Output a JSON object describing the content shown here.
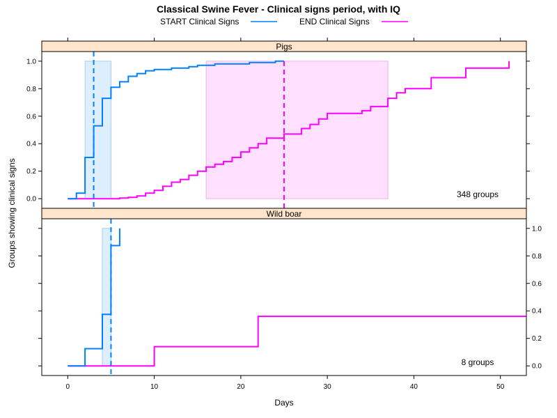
{
  "chart_data": {
    "type": "line",
    "title": "Classical Swine Fever - Clinical signs period, with IQ",
    "xlabel": "Days",
    "ylabel": "Groups showing clinical signs",
    "xlim": [
      -3,
      53
    ],
    "ylim": [
      -0.07,
      1.07
    ],
    "x_ticks": [
      0,
      10,
      20,
      30,
      40,
      50
    ],
    "y_ticks": [
      0.0,
      0.2,
      0.4,
      0.6,
      0.8,
      1.0
    ],
    "x_tick_labels": [
      "0",
      "10",
      "20",
      "30",
      "40",
      "50"
    ],
    "y_tick_labels": [
      "0.0",
      "0.2",
      "0.4",
      "0.6",
      "0.8",
      "1.0"
    ],
    "legend": {
      "placement": "top",
      "entries": [
        {
          "label": "START Clinical Signs",
          "color": "#0080ff"
        },
        {
          "label": "END Clinical Signs",
          "color": "#ff00ff"
        }
      ]
    },
    "panels": [
      {
        "strip": "Pigs",
        "count_label": "348 groups",
        "start_series": {
          "name": "START Clinical Signs",
          "color": "#0080ff",
          "median": 3,
          "iq": [
            2,
            5
          ],
          "steps": [
            [
              0,
              0
            ],
            [
              1,
              0.04
            ],
            [
              2,
              0.3
            ],
            [
              3,
              0.53
            ],
            [
              4,
              0.73
            ],
            [
              5,
              0.81
            ],
            [
              6,
              0.85
            ],
            [
              7,
              0.89
            ],
            [
              8,
              0.91
            ],
            [
              9,
              0.93
            ],
            [
              10,
              0.94
            ],
            [
              12,
              0.95
            ],
            [
              14,
              0.96
            ],
            [
              15,
              0.97
            ],
            [
              17,
              0.98
            ],
            [
              21,
              0.99
            ],
            [
              24,
              1.0
            ],
            [
              25,
              1.0
            ]
          ]
        },
        "end_series": {
          "name": "END Clinical Signs",
          "color": "#ff00ff",
          "median": 25,
          "iq": [
            16,
            37
          ],
          "steps": [
            [
              0,
              0
            ],
            [
              6,
              0.005
            ],
            [
              7,
              0.01
            ],
            [
              8,
              0.02
            ],
            [
              9,
              0.04
            ],
            [
              10,
              0.06
            ],
            [
              11,
              0.09
            ],
            [
              12,
              0.12
            ],
            [
              13,
              0.14
            ],
            [
              14,
              0.17
            ],
            [
              15,
              0.2
            ],
            [
              16,
              0.23
            ],
            [
              17,
              0.25
            ],
            [
              18,
              0.27
            ],
            [
              19,
              0.3
            ],
            [
              20,
              0.34
            ],
            [
              21,
              0.37
            ],
            [
              22,
              0.4
            ],
            [
              23,
              0.44
            ],
            [
              25,
              0.47
            ],
            [
              27,
              0.51
            ],
            [
              28,
              0.54
            ],
            [
              29,
              0.58
            ],
            [
              30,
              0.62
            ],
            [
              34,
              0.64
            ],
            [
              35,
              0.67
            ],
            [
              37,
              0.73
            ],
            [
              38,
              0.77
            ],
            [
              39,
              0.8
            ],
            [
              42,
              0.88
            ],
            [
              45,
              0.88
            ],
            [
              46,
              0.95
            ],
            [
              51,
              0.95
            ],
            [
              51,
              1.0
            ]
          ]
        }
      },
      {
        "strip": "Wild boar",
        "count_label": "8 groups",
        "start_series": {
          "name": "START Clinical Signs",
          "color": "#0080ff",
          "median": 5,
          "iq": [
            4,
            5
          ],
          "steps": [
            [
              0,
              0
            ],
            [
              2,
              0
            ],
            [
              2,
              0.125
            ],
            [
              4,
              0.125
            ],
            [
              4,
              0.375
            ],
            [
              5,
              0.375
            ],
            [
              5,
              0.875
            ],
            [
              6,
              0.875
            ],
            [
              6,
              1.0
            ]
          ]
        },
        "end_series": {
          "name": "END Clinical Signs",
          "color": "#ff00ff",
          "steps": [
            [
              0,
              0
            ],
            [
              10,
              0
            ],
            [
              10,
              0.14
            ],
            [
              22,
              0.14
            ],
            [
              22,
              0.36
            ],
            [
              53,
              0.36
            ]
          ]
        }
      }
    ]
  }
}
